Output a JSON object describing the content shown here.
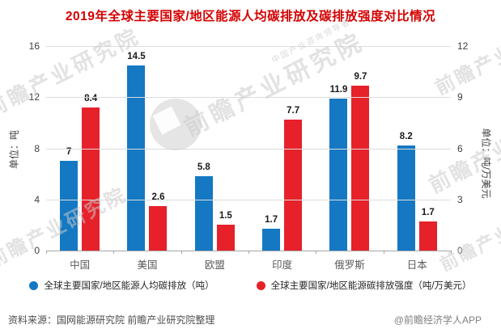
{
  "title": "2019年全球主要国家/地区能源人均碳排放及碳排放强度对比情况",
  "colors": {
    "series_blue": "#1478c3",
    "series_red": "#e6212a",
    "title_red": "#d40000",
    "gridline": "#dcdcdc",
    "axis": "#a6a6a6"
  },
  "chart_data": {
    "type": "bar",
    "title": "2019年全球主要国家/地区能源人均碳排放及碳排放强度对比情况",
    "categories": [
      "中国",
      "美国",
      "欧盟",
      "印度",
      "俄罗斯",
      "日本"
    ],
    "series": [
      {
        "name": "全球主要国家/地区能源人均碳排放（吨）",
        "axis": "left",
        "color": "#1478c3",
        "values": [
          7,
          14.5,
          5.8,
          1.7,
          11.9,
          8.2
        ]
      },
      {
        "name": "全球主要国家/地区能源碳排放强度（吨/万美元）",
        "axis": "right",
        "color": "#e6212a",
        "values": [
          8.4,
          2.6,
          1.5,
          7.7,
          9.7,
          1.7
        ]
      }
    ],
    "axes": {
      "left": {
        "unit": "单位：吨",
        "max": 16,
        "ticks": [
          16,
          12,
          8,
          4,
          0
        ]
      },
      "right": {
        "unit": "单位：吨/万美元",
        "max": 12,
        "ticks": [
          12,
          9,
          6,
          3,
          0
        ]
      }
    },
    "grid": true,
    "legend_position": "bottom"
  },
  "footer": {
    "source": "资料来源：国网能源研究院 前瞻产业研究院整理",
    "credit": "@前瞻经济学人APP"
  },
  "watermarks": {
    "brand": "前瞻产业研究院",
    "tagline": "中国产业咨询领导者"
  }
}
